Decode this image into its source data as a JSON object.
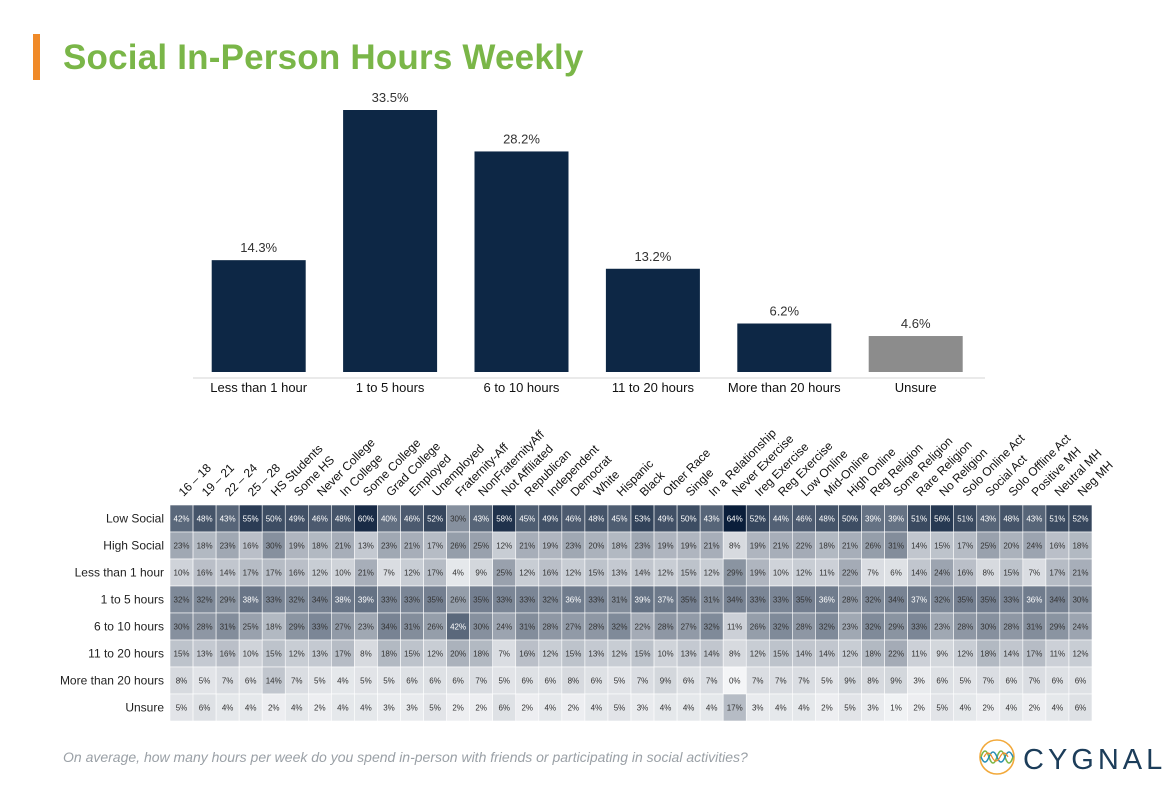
{
  "title": "Social In-Person Hours Weekly",
  "footnote": "On average, how many hours per week do you spend in-person with friends or participating in social activities?",
  "brand": "CYGNAL",
  "colors": {
    "title": "#7ab648",
    "accent": "#f08a28",
    "bar": "#0d2745",
    "unsure_bar": "#8c8c8c",
    "brand": "#1c3d5a"
  },
  "chart_data": [
    {
      "type": "bar",
      "categories": [
        "Less than 1 hour",
        "1 to 5 hours",
        "6 to 10 hours",
        "11 to 20 hours",
        "More than 20 hours",
        "Unsure"
      ],
      "values": [
        14.3,
        33.5,
        28.2,
        13.2,
        6.2,
        4.6
      ],
      "labels": [
        "14.3%",
        "33.5%",
        "28.2%",
        "13.2%",
        "6.2%",
        "4.6%"
      ],
      "ylim": [
        0,
        35
      ],
      "grid": false,
      "legend": "none"
    },
    {
      "type": "heatmap",
      "columns": [
        "16 – 18",
        "19 – 21",
        "22 – 24",
        "25 – 28",
        "HS Students",
        "Some HS",
        "Never College",
        "In College",
        "Some College",
        "Grad College",
        "Employed",
        "Unemployed",
        "Fraternity-Aff",
        "NonFraternityAff",
        "Not Affiliated",
        "Republican",
        "Independent",
        "Democrat",
        "White",
        "Hispanic",
        "Black",
        "Other Race",
        "Single",
        "In a Relationship",
        "Never Exercise",
        "Ireg Exercise",
        "Reg Exercise",
        "Low Online",
        "Mid-Online",
        "High Online",
        "Reg Religion",
        "Some Religion",
        "Rare Religion",
        "No Religion",
        "Solo Online Act",
        "Social Act",
        "Solo Offline Act",
        "Positive MH",
        "Neutral MH",
        "Neg MH"
      ],
      "rows": [
        "Low Social",
        "High Social",
        "Less than 1 hour",
        "1 to 5 hours",
        "6 to 10 hours",
        "11 to 20 hours",
        "More than 20 hours",
        "Unsure"
      ],
      "values": [
        [
          42,
          48,
          43,
          55,
          50,
          49,
          46,
          48,
          60,
          40,
          46,
          52,
          30,
          43,
          58,
          45,
          49,
          46,
          48,
          45,
          53,
          49,
          50,
          43,
          64,
          52,
          44,
          46,
          48,
          50,
          39,
          39,
          51,
          56,
          51,
          43,
          48,
          43,
          51,
          52
        ],
        [
          23,
          18,
          23,
          16,
          30,
          19,
          18,
          21,
          13,
          23,
          21,
          17,
          26,
          25,
          12,
          21,
          19,
          23,
          20,
          18,
          23,
          19,
          19,
          21,
          8,
          19,
          21,
          22,
          18,
          21,
          26,
          31,
          14,
          15,
          17,
          25,
          20,
          24,
          16,
          18
        ],
        [
          10,
          16,
          14,
          17,
          17,
          16,
          12,
          10,
          21,
          7,
          12,
          17,
          4,
          9,
          25,
          12,
          16,
          12,
          15,
          13,
          14,
          12,
          15,
          12,
          29,
          19,
          10,
          12,
          11,
          22,
          7,
          6,
          14,
          24,
          16,
          8,
          15,
          7,
          17,
          21
        ],
        [
          32,
          32,
          29,
          38,
          33,
          32,
          34,
          38,
          39,
          33,
          33,
          35,
          26,
          35,
          33,
          33,
          32,
          36,
          33,
          31,
          39,
          37,
          35,
          31,
          34,
          33,
          33,
          35,
          36,
          28,
          32,
          34,
          37,
          32,
          35,
          35,
          33,
          36,
          34,
          30
        ],
        [
          30,
          28,
          31,
          25,
          18,
          29,
          33,
          27,
          23,
          34,
          31,
          26,
          42,
          30,
          24,
          31,
          28,
          27,
          28,
          32,
          22,
          28,
          27,
          32,
          11,
          26,
          32,
          28,
          32,
          23,
          32,
          29,
          33,
          23,
          28,
          30,
          28,
          31,
          29,
          24
        ],
        [
          15,
          13,
          16,
          10,
          15,
          12,
          13,
          17,
          8,
          18,
          15,
          12,
          20,
          18,
          7,
          16,
          12,
          15,
          13,
          12,
          15,
          10,
          13,
          14,
          8,
          12,
          15,
          14,
          14,
          12,
          18,
          22,
          11,
          9,
          12,
          18,
          14,
          17,
          11,
          12
        ],
        [
          8,
          5,
          7,
          6,
          14,
          7,
          5,
          4,
          5,
          5,
          6,
          6,
          6,
          7,
          5,
          6,
          6,
          8,
          6,
          5,
          7,
          9,
          6,
          7,
          0,
          7,
          7,
          7,
          5,
          9,
          8,
          9,
          3,
          6,
          5,
          7,
          6,
          7,
          6,
          6
        ],
        [
          5,
          6,
          4,
          4,
          2,
          4,
          2,
          4,
          4,
          3,
          3,
          5,
          2,
          2,
          6,
          2,
          4,
          2,
          4,
          5,
          3,
          4,
          4,
          4,
          17,
          3,
          4,
          4,
          2,
          5,
          3,
          1,
          2,
          5,
          4,
          2,
          4,
          2,
          4,
          6
        ]
      ]
    }
  ]
}
